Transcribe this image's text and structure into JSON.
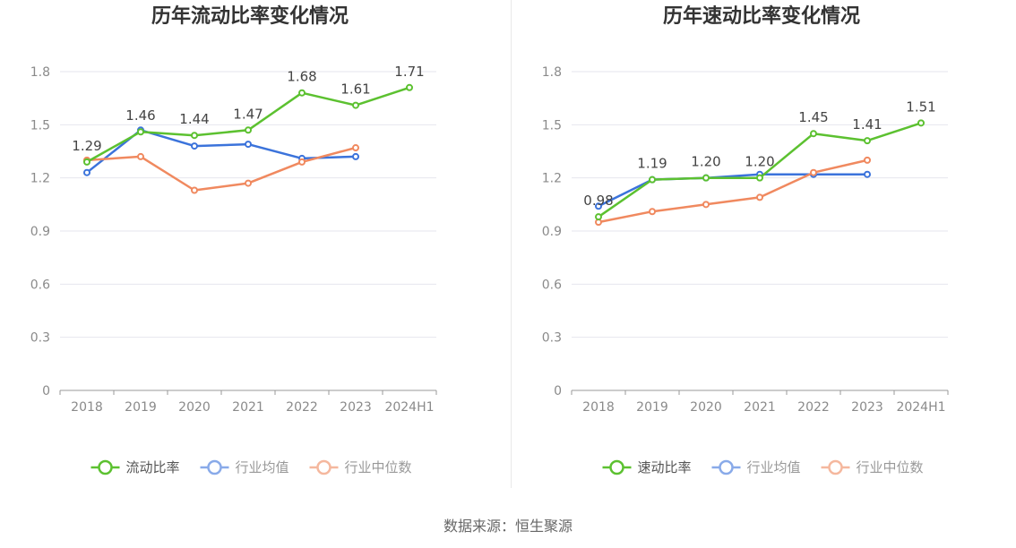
{
  "colors": {
    "current": "#5cc130",
    "average": "#3b73db",
    "median": "#f0895f",
    "grid": "#e6e6ee",
    "axis": "#999999"
  },
  "chart_data": [
    {
      "type": "line",
      "title": "历年流动比率变化情况",
      "categories": [
        "2018",
        "2019",
        "2020",
        "2021",
        "2022",
        "2023",
        "2024H1"
      ],
      "ylim": [
        0,
        1.8
      ],
      "yticks": [
        "0",
        "0.3",
        "0.6",
        "0.9",
        "1.2",
        "1.5",
        "1.8"
      ],
      "grid": true,
      "legend_position": "bottom",
      "series": [
        {
          "name": "流动比率",
          "color_key": "current",
          "labeled": true,
          "values": [
            1.29,
            1.46,
            1.44,
            1.47,
            1.68,
            1.61,
            1.71
          ]
        },
        {
          "name": "行业均值",
          "color_key": "average",
          "labeled": false,
          "values": [
            1.23,
            1.47,
            1.38,
            1.39,
            1.31,
            1.32,
            null
          ]
        },
        {
          "name": "行业中位数",
          "color_key": "median",
          "labeled": false,
          "values": [
            1.3,
            1.32,
            1.13,
            1.17,
            1.29,
            1.37,
            null
          ]
        }
      ]
    },
    {
      "type": "line",
      "title": "历年速动比率变化情况",
      "categories": [
        "2018",
        "2019",
        "2020",
        "2021",
        "2022",
        "2023",
        "2024H1"
      ],
      "ylim": [
        0,
        1.8
      ],
      "yticks": [
        "0",
        "0.3",
        "0.6",
        "0.9",
        "1.2",
        "1.5",
        "1.8"
      ],
      "grid": true,
      "legend_position": "bottom",
      "series": [
        {
          "name": "速动比率",
          "color_key": "current",
          "labeled": true,
          "values": [
            0.98,
            1.19,
            1.2,
            1.2,
            1.45,
            1.41,
            1.51
          ]
        },
        {
          "name": "行业均值",
          "color_key": "average",
          "labeled": false,
          "values": [
            1.04,
            1.19,
            1.2,
            1.22,
            1.22,
            1.22,
            null
          ]
        },
        {
          "name": "行业中位数",
          "color_key": "median",
          "labeled": false,
          "values": [
            0.95,
            1.01,
            1.05,
            1.09,
            1.23,
            1.3,
            null
          ]
        }
      ]
    }
  ],
  "footer": {
    "source": "数据来源：恒生聚源"
  }
}
